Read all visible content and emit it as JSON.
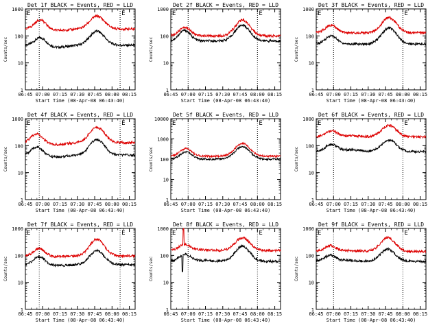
{
  "chart_data": [
    {
      "type": "line",
      "title": "Det 1f BLACK = Events, RED = LLD",
      "xlabel": "Start Time (08-Apr-08 06:43:40)",
      "ylabel": "Counts/sec",
      "yscale": "log",
      "ylim": [
        1,
        1000
      ],
      "xlim": [
        "06:45",
        "08:20"
      ],
      "x_ticks": [
        "06:45",
        "07:00",
        "07:15",
        "07:30",
        "07:45",
        "08:00",
        "08:15"
      ],
      "y_ticks": [
        "1",
        "10",
        "100",
        "1000"
      ],
      "markers": [
        {
          "time": "06:57",
          "label": ""
        },
        {
          "time": "08:07",
          "label": "E"
        }
      ],
      "corner_label": "E",
      "series": [
        {
          "name": "BLACK = Events",
          "color": "#000000",
          "baseline": 45,
          "peak1": {
            "time": "06:58",
            "value": 88
          },
          "dip": {
            "time": "07:13",
            "value": 38
          },
          "peak2": {
            "time": "07:47",
            "value": 150
          }
        },
        {
          "name": "RED = LLD",
          "color": "#dd0000",
          "baseline": 180,
          "peak1": {
            "time": "06:58",
            "value": 400
          },
          "dip": {
            "time": "07:13",
            "value": 160
          },
          "peak2": {
            "time": "07:47",
            "value": 540
          }
        }
      ]
    },
    {
      "type": "line",
      "title": "Det 2f BLACK = Events, RED = LLD",
      "xlabel": "Start Time (08-Apr-08 06:43:40)",
      "ylabel": "Counts/sec",
      "yscale": "log",
      "ylim": [
        1,
        1000
      ],
      "xlim": [
        "06:45",
        "08:20"
      ],
      "x_ticks": [
        "06:45",
        "07:00",
        "07:15",
        "07:30",
        "07:45",
        "08:00",
        "08:15"
      ],
      "y_ticks": [
        "1",
        "10",
        "100",
        "1000"
      ],
      "markers": [
        {
          "time": "07:00",
          "label": ""
        },
        {
          "time": "08:00",
          "label": "E"
        }
      ],
      "corner_label": "E",
      "series": [
        {
          "name": "BLACK = Events",
          "color": "#000000",
          "baseline": 65,
          "peak1": {
            "time": "06:57",
            "value": 160
          },
          "dip": {
            "time": "07:13",
            "value": 65
          },
          "peak2": {
            "time": "07:47",
            "value": 250
          }
        },
        {
          "name": "RED = LLD",
          "color": "#dd0000",
          "baseline": 100,
          "peak1": {
            "time": "06:57",
            "value": 210
          },
          "dip": {
            "time": "07:13",
            "value": 100
          },
          "peak2": {
            "time": "07:47",
            "value": 380
          }
        }
      ]
    },
    {
      "type": "line",
      "title": "Det 3f BLACK = Events, RED = LLD",
      "xlabel": "Start Time (08-Apr-08 06:43:40)",
      "ylabel": "Counts/sec",
      "yscale": "log",
      "ylim": [
        1,
        1000
      ],
      "xlim": [
        "06:45",
        "08:20"
      ],
      "x_ticks": [
        "06:45",
        "07:00",
        "07:15",
        "07:30",
        "07:45",
        "08:00",
        "08:15"
      ],
      "y_ticks": [
        "1",
        "10",
        "100",
        "1000"
      ],
      "markers": [
        {
          "time": "07:00",
          "label": ""
        },
        {
          "time": "08:00",
          "label": "E"
        }
      ],
      "corner_label": "E",
      "series": [
        {
          "name": "BLACK = Events",
          "color": "#000000",
          "baseline": 50,
          "peak1": {
            "time": "06:58",
            "value": 100
          },
          "dip": {
            "time": "07:13",
            "value": 50
          },
          "peak2": {
            "time": "07:48",
            "value": 200
          }
        },
        {
          "name": "RED = LLD",
          "color": "#dd0000",
          "baseline": 130,
          "peak1": {
            "time": "06:58",
            "value": 250
          },
          "dip": {
            "time": "07:13",
            "value": 130
          },
          "peak2": {
            "time": "07:48",
            "value": 480
          }
        }
      ]
    },
    {
      "type": "line",
      "title": "Det 4f BLACK = Events, RED = LLD",
      "xlabel": "Start Time (08-Apr-08 06:43:40)",
      "ylabel": "Counts/sec",
      "yscale": "log",
      "ylim": [
        1,
        1000
      ],
      "xlim": [
        "06:45",
        "08:20"
      ],
      "x_ticks": [
        "06:45",
        "07:00",
        "07:15",
        "07:30",
        "07:45",
        "08:00",
        "08:15"
      ],
      "y_ticks": [
        "1",
        "10",
        "100",
        "1000"
      ],
      "markers": [
        {
          "time": "06:57",
          "label": ""
        },
        {
          "time": "08:07",
          "label": "E"
        }
      ],
      "corner_label": "E",
      "series": [
        {
          "name": "BLACK = Events",
          "color": "#000000",
          "baseline": 45,
          "peak1": {
            "time": "06:55",
            "value": 90
          },
          "dip": {
            "time": "07:12",
            "value": 38
          },
          "peak2": {
            "time": "07:47",
            "value": 170
          }
        },
        {
          "name": "RED = LLD",
          "color": "#dd0000",
          "baseline": 130,
          "peak1": {
            "time": "06:55",
            "value": 280
          },
          "dip": {
            "time": "07:12",
            "value": 110
          },
          "peak2": {
            "time": "07:47",
            "value": 480
          }
        }
      ]
    },
    {
      "type": "line",
      "title": "Det 5f BLACK = Events, RED = LLD",
      "xlabel": "Start Time (08-Apr-08 06:43:40)",
      "ylabel": "Counts/sec",
      "yscale": "log",
      "ylim": [
        1,
        10000
      ],
      "xlim": [
        "06:45",
        "08:20"
      ],
      "x_ticks": [
        "06:45",
        "07:00",
        "07:15",
        "07:30",
        "07:45",
        "08:00",
        "08:15"
      ],
      "y_ticks": [
        "1",
        "10",
        "100",
        "1000",
        "10000"
      ],
      "markers": [
        {
          "time": "07:00",
          "label": ""
        },
        {
          "time": "08:00",
          "label": "E"
        }
      ],
      "corner_label": "E",
      "series": [
        {
          "name": "BLACK = Events",
          "color": "#000000",
          "baseline": 100,
          "peak1": {
            "time": "06:58",
            "value": 230
          },
          "dip": {
            "time": "07:15",
            "value": 100
          },
          "peak2": {
            "time": "07:47",
            "value": 420
          }
        },
        {
          "name": "RED = LLD",
          "color": "#dd0000",
          "baseline": 140,
          "peak1": {
            "time": "06:58",
            "value": 330
          },
          "dip": {
            "time": "07:15",
            "value": 140
          },
          "peak2": {
            "time": "07:47",
            "value": 600
          }
        }
      ]
    },
    {
      "type": "line",
      "title": "Det 6f BLACK = Events, RED = LLD",
      "xlabel": "Start Time (08-Apr-08 06:43:40)",
      "ylabel": "Counts/sec",
      "yscale": "log",
      "ylim": [
        1,
        1000
      ],
      "xlim": [
        "06:45",
        "08:20"
      ],
      "x_ticks": [
        "06:45",
        "07:00",
        "07:15",
        "07:30",
        "07:45",
        "08:00",
        "08:15"
      ],
      "y_ticks": [
        "1",
        "10",
        "100",
        "1000"
      ],
      "markers": [
        {
          "time": "07:00",
          "label": ""
        },
        {
          "time": "08:00",
          "label": "E"
        }
      ],
      "corner_label": "E",
      "series": [
        {
          "name": "BLACK = Events",
          "color": "#000000",
          "baseline": 60,
          "peak1": {
            "time": "06:58",
            "value": 110
          },
          "dip": {
            "time": "07:15",
            "value": 70
          },
          "peak2": {
            "time": "07:48",
            "value": 160
          }
        },
        {
          "name": "RED = LLD",
          "color": "#dd0000",
          "baseline": 210,
          "peak1": {
            "time": "06:58",
            "value": 350
          },
          "dip": {
            "time": "07:15",
            "value": 230
          },
          "peak2": {
            "time": "07:48",
            "value": 560
          }
        }
      ]
    },
    {
      "type": "line",
      "title": "Det 7f BLACK = Events, RED = LLD",
      "xlabel": "Start Time (08-Apr-08 06:43:40)",
      "ylabel": "Counts/sec",
      "yscale": "log",
      "ylim": [
        1,
        1000
      ],
      "xlim": [
        "06:45",
        "08:20"
      ],
      "x_ticks": [
        "06:45",
        "07:00",
        "07:15",
        "07:30",
        "07:45",
        "08:00",
        "08:15"
      ],
      "y_ticks": [
        "1",
        "10",
        "100",
        "1000"
      ],
      "markers": [
        {
          "time": "06:57",
          "label": ""
        },
        {
          "time": "08:07",
          "label": "E"
        }
      ],
      "corner_label": "E",
      "series": [
        {
          "name": "BLACK = Events",
          "color": "#000000",
          "baseline": 45,
          "peak1": {
            "time": "06:57",
            "value": 90
          },
          "dip": {
            "time": "07:13",
            "value": 42
          },
          "peak2": {
            "time": "07:47",
            "value": 150
          }
        },
        {
          "name": "RED = LLD",
          "color": "#dd0000",
          "baseline": 95,
          "peak1": {
            "time": "06:57",
            "value": 180
          },
          "dip": {
            "time": "07:13",
            "value": 90
          },
          "peak2": {
            "time": "07:47",
            "value": 400
          }
        }
      ]
    },
    {
      "type": "line",
      "title": "Det 8f BLACK = Events, RED = LLD",
      "xlabel": "Start Time (08-Apr-08 06:43:40)",
      "ylabel": "Counts/sec",
      "yscale": "log",
      "ylim": [
        1,
        1000
      ],
      "xlim": [
        "06:45",
        "08:20"
      ],
      "x_ticks": [
        "06:45",
        "07:00",
        "07:15",
        "07:30",
        "07:45",
        "08:00",
        "08:15"
      ],
      "y_ticks": [
        "1",
        "10",
        "100",
        "1000"
      ],
      "markers": [
        {
          "time": "07:00",
          "label": ""
        },
        {
          "time": "08:00",
          "label": "E"
        }
      ],
      "corner_label": "E",
      "series": [
        {
          "name": "BLACK = Events",
          "color": "#000000",
          "baseline": 60,
          "peak1": {
            "time": "06:57",
            "value": 110
          },
          "dip": {
            "time": "07:13",
            "value": 65
          },
          "peak2": {
            "time": "07:47",
            "value": 220
          },
          "spike": {
            "time": "06:55",
            "value": 25
          }
        },
        {
          "name": "RED = LLD",
          "color": "#dd0000",
          "baseline": 150,
          "peak1": {
            "time": "06:57",
            "value": 250
          },
          "dip": {
            "time": "07:13",
            "value": 160
          },
          "peak2": {
            "time": "07:47",
            "value": 450
          },
          "spike": {
            "time": "06:56",
            "value": 1000
          }
        }
      ]
    },
    {
      "type": "line",
      "title": "Det 9f BLACK = Events, RED = LLD",
      "xlabel": "Start Time (08-Apr-08 06:43:40)",
      "ylabel": "Counts/sec",
      "yscale": "log",
      "ylim": [
        1,
        1000
      ],
      "xlim": [
        "06:45",
        "08:20"
      ],
      "x_ticks": [
        "06:45",
        "07:00",
        "07:15",
        "07:30",
        "07:45",
        "08:00",
        "08:15"
      ],
      "y_ticks": [
        "1",
        "10",
        "100",
        "1000"
      ],
      "markers": [
        {
          "time": "07:00",
          "label": ""
        },
        {
          "time": "08:00",
          "label": "E"
        }
      ],
      "corner_label": "E",
      "series": [
        {
          "name": "BLACK = Events",
          "color": "#000000",
          "baseline": 60,
          "peak1": {
            "time": "06:57",
            "value": 100
          },
          "dip": {
            "time": "07:13",
            "value": 65
          },
          "peak2": {
            "time": "07:47",
            "value": 170
          }
        },
        {
          "name": "RED = LLD",
          "color": "#dd0000",
          "baseline": 140,
          "peak1": {
            "time": "06:57",
            "value": 230
          },
          "dip": {
            "time": "07:13",
            "value": 150
          },
          "peak2": {
            "time": "07:47",
            "value": 450
          }
        }
      ]
    }
  ]
}
